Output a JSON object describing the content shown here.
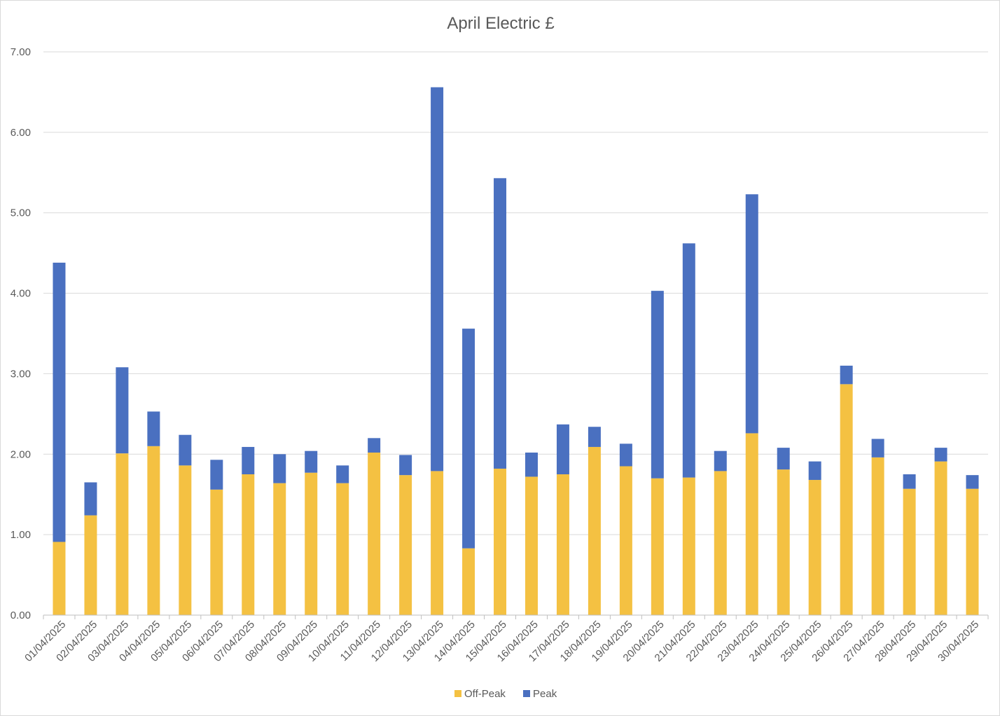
{
  "chart_data": {
    "type": "bar",
    "stacked": true,
    "title": "April Electric £",
    "xlabel": "",
    "ylabel": "",
    "ylim": [
      0,
      7
    ],
    "y_ticks": [
      "0.00",
      "1.00",
      "2.00",
      "3.00",
      "4.00",
      "5.00",
      "6.00",
      "7.00"
    ],
    "grid": "horizontal",
    "legend_position": "bottom",
    "categories": [
      "01/04/2025",
      "02/04/2025",
      "03/04/2025",
      "04/04/2025",
      "05/04/2025",
      "06/04/2025",
      "07/04/2025",
      "08/04/2025",
      "09/04/2025",
      "10/04/2025",
      "11/04/2025",
      "12/04/2025",
      "13/04/2025",
      "14/04/2025",
      "15/04/2025",
      "16/04/2025",
      "17/04/2025",
      "18/04/2025",
      "19/04/2025",
      "20/04/2025",
      "21/04/2025",
      "22/04/2025",
      "23/04/2025",
      "24/04/2025",
      "25/04/2025",
      "26/04/2025",
      "27/04/2025",
      "28/04/2025",
      "29/04/2025",
      "30/04/2025"
    ],
    "series": [
      {
        "name": "Off-Peak",
        "color": "#F4C142",
        "values": [
          0.91,
          1.24,
          2.01,
          2.1,
          1.86,
          1.56,
          1.75,
          1.64,
          1.77,
          1.64,
          2.02,
          1.74,
          1.79,
          0.83,
          1.82,
          1.72,
          1.75,
          2.09,
          1.85,
          1.7,
          1.71,
          1.79,
          2.26,
          1.81,
          1.68,
          2.87,
          1.96,
          1.57,
          1.91,
          1.57
        ]
      },
      {
        "name": "Peak",
        "color": "#4A70C0",
        "values": [
          3.47,
          0.41,
          1.07,
          0.43,
          0.38,
          0.37,
          0.34,
          0.36,
          0.27,
          0.22,
          0.18,
          0.25,
          4.77,
          2.73,
          3.61,
          0.3,
          0.62,
          0.25,
          0.28,
          2.33,
          2.91,
          0.25,
          2.97,
          0.27,
          0.23,
          0.23,
          0.23,
          0.18,
          0.17,
          0.17
        ]
      }
    ]
  }
}
